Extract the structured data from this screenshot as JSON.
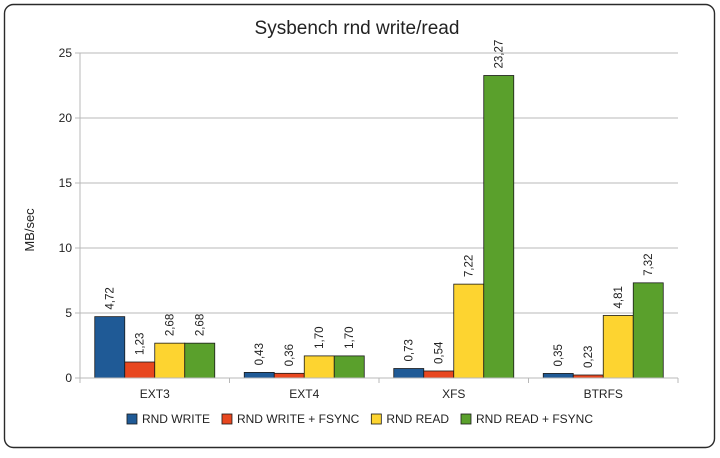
{
  "chart_data": {
    "type": "bar",
    "title": "Sysbench rnd write/read",
    "ylabel": "MB/sec",
    "xlabel": "",
    "categories": [
      "EXT3",
      "EXT4",
      "XFS",
      "BTRFS"
    ],
    "series": [
      {
        "name": "RND WRITE",
        "values": [
          4.72,
          0.43,
          0.73,
          0.35
        ],
        "labels": [
          "4,72",
          "0,43",
          "0,73",
          "0,35"
        ],
        "color": "#1f5a96"
      },
      {
        "name": "RND WRITE + FSYNC",
        "values": [
          1.23,
          0.36,
          0.54,
          0.23
        ],
        "labels": [
          "1,23",
          "0,36",
          "0,54",
          "0,23"
        ],
        "color": "#e8471f"
      },
      {
        "name": "RND READ",
        "values": [
          2.68,
          1.7,
          7.22,
          4.81
        ],
        "labels": [
          "2,68",
          "1,70",
          "7,22",
          "4,81"
        ],
        "color": "#fdd430"
      },
      {
        "name": "RND READ + FSYNC",
        "values": [
          2.68,
          1.7,
          23.27,
          7.32
        ],
        "labels": [
          "2,68",
          "1,70",
          "23,27",
          "7,32"
        ],
        "color": "#5aa02c"
      }
    ],
    "ylim": [
      0,
      25
    ],
    "yticks": [
      0,
      5,
      10,
      15,
      20,
      25
    ],
    "grid": true,
    "legend": "bottom"
  }
}
